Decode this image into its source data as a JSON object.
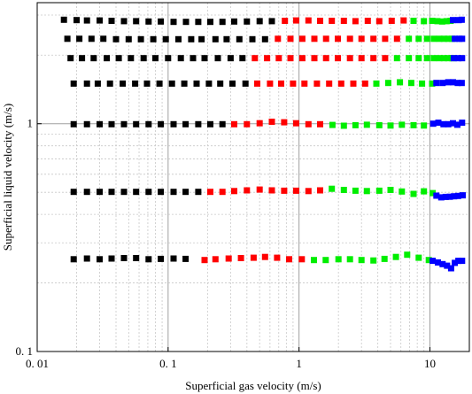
{
  "chart_data": {
    "type": "scatter",
    "xscale": "log",
    "yscale": "log",
    "xlim": [
      0.01,
      20
    ],
    "ylim": [
      0.1,
      3.4
    ],
    "xlabel": "Superficial gas velocity (m/s)",
    "ylabel": "Superficial liquid velocity (m/s)",
    "xticks": [
      {
        "value": 0.01,
        "label": "0. 01"
      },
      {
        "value": 0.1,
        "label": "0. 1"
      },
      {
        "value": 1,
        "label": "1"
      },
      {
        "value": 10,
        "label": "10"
      }
    ],
    "yticks": [
      {
        "value": 0.1,
        "label": "0. 1"
      },
      {
        "value": 1,
        "label": "1"
      }
    ],
    "grid": {
      "major": true,
      "minor": true
    },
    "colors": {
      "black": "#000000",
      "red": "#ff0000",
      "green": "#00ee00",
      "blue": "#0000ff"
    },
    "series": [
      {
        "color": "black",
        "points": [
          [
            0.016,
            2.86
          ],
          [
            0.02,
            2.85
          ],
          [
            0.024,
            2.84
          ],
          [
            0.03,
            2.84
          ],
          [
            0.037,
            2.83
          ],
          [
            0.046,
            2.82
          ],
          [
            0.057,
            2.82
          ],
          [
            0.071,
            2.81
          ],
          [
            0.088,
            2.81
          ],
          [
            0.11,
            2.8
          ],
          [
            0.137,
            2.8
          ],
          [
            0.17,
            2.8
          ],
          [
            0.21,
            2.8
          ],
          [
            0.26,
            2.8
          ],
          [
            0.32,
            2.81
          ],
          [
            0.4,
            2.81
          ],
          [
            0.5,
            2.82
          ],
          [
            0.62,
            2.82
          ],
          [
            0.017,
            2.36
          ],
          [
            0.021,
            2.36
          ],
          [
            0.026,
            2.36
          ],
          [
            0.032,
            2.36
          ],
          [
            0.04,
            2.35
          ],
          [
            0.05,
            2.35
          ],
          [
            0.062,
            2.35
          ],
          [
            0.077,
            2.35
          ],
          [
            0.096,
            2.35
          ],
          [
            0.12,
            2.35
          ],
          [
            0.15,
            2.35
          ],
          [
            0.18,
            2.35
          ],
          [
            0.23,
            2.35
          ],
          [
            0.28,
            2.35
          ],
          [
            0.35,
            2.35
          ],
          [
            0.44,
            2.35
          ],
          [
            0.55,
            2.35
          ],
          [
            0.018,
            1.94
          ],
          [
            0.022,
            1.94
          ],
          [
            0.027,
            1.94
          ],
          [
            0.034,
            1.94
          ],
          [
            0.042,
            1.94
          ],
          [
            0.052,
            1.94
          ],
          [
            0.065,
            1.94
          ],
          [
            0.08,
            1.94
          ],
          [
            0.1,
            1.94
          ],
          [
            0.125,
            1.94
          ],
          [
            0.155,
            1.94
          ],
          [
            0.19,
            1.94
          ],
          [
            0.24,
            1.94
          ],
          [
            0.3,
            1.94
          ],
          [
            0.37,
            1.94
          ],
          [
            0.019,
            1.5
          ],
          [
            0.024,
            1.5
          ],
          [
            0.029,
            1.5
          ],
          [
            0.036,
            1.5
          ],
          [
            0.045,
            1.5
          ],
          [
            0.056,
            1.5
          ],
          [
            0.069,
            1.5
          ],
          [
            0.086,
            1.5
          ],
          [
            0.107,
            1.5
          ],
          [
            0.133,
            1.5
          ],
          [
            0.165,
            1.5
          ],
          [
            0.205,
            1.5
          ],
          [
            0.25,
            1.5
          ],
          [
            0.31,
            1.5
          ],
          [
            0.39,
            1.5
          ],
          [
            0.019,
            0.995
          ],
          [
            0.024,
            0.995
          ],
          [
            0.03,
            0.995
          ],
          [
            0.037,
            0.995
          ],
          [
            0.046,
            0.995
          ],
          [
            0.057,
            0.995
          ],
          [
            0.071,
            0.995
          ],
          [
            0.088,
            0.995
          ],
          [
            0.11,
            0.995
          ],
          [
            0.136,
            0.995
          ],
          [
            0.17,
            0.995
          ],
          [
            0.21,
            0.995
          ],
          [
            0.26,
            0.995
          ],
          [
            0.019,
            0.502
          ],
          [
            0.024,
            0.502
          ],
          [
            0.03,
            0.502
          ],
          [
            0.037,
            0.502
          ],
          [
            0.046,
            0.502
          ],
          [
            0.057,
            0.502
          ],
          [
            0.071,
            0.502
          ],
          [
            0.088,
            0.502
          ],
          [
            0.11,
            0.502
          ],
          [
            0.136,
            0.502
          ],
          [
            0.17,
            0.502
          ],
          [
            0.019,
            0.254
          ],
          [
            0.024,
            0.256
          ],
          [
            0.03,
            0.254
          ],
          [
            0.037,
            0.256
          ],
          [
            0.046,
            0.257
          ],
          [
            0.057,
            0.257
          ],
          [
            0.071,
            0.254
          ],
          [
            0.088,
            0.255
          ],
          [
            0.11,
            0.256
          ],
          [
            0.136,
            0.255
          ]
        ]
      },
      {
        "color": "red",
        "points": [
          [
            0.78,
            2.83
          ],
          [
            0.95,
            2.84
          ],
          [
            1.18,
            2.84
          ],
          [
            1.45,
            2.83
          ],
          [
            1.78,
            2.83
          ],
          [
            2.2,
            2.83
          ],
          [
            2.7,
            2.82
          ],
          [
            3.35,
            2.83
          ],
          [
            4.1,
            2.82
          ],
          [
            5.1,
            2.83
          ],
          [
            6.3,
            2.84
          ],
          [
            0.69,
            2.36
          ],
          [
            0.86,
            2.36
          ],
          [
            1.06,
            2.36
          ],
          [
            1.31,
            2.36
          ],
          [
            1.61,
            2.36
          ],
          [
            1.98,
            2.36
          ],
          [
            2.45,
            2.36
          ],
          [
            3.0,
            2.36
          ],
          [
            3.7,
            2.36
          ],
          [
            4.55,
            2.36
          ],
          [
            5.6,
            2.36
          ],
          [
            0.46,
            1.94
          ],
          [
            0.57,
            1.94
          ],
          [
            0.7,
            1.94
          ],
          [
            0.86,
            1.94
          ],
          [
            1.06,
            1.94
          ],
          [
            1.31,
            1.94
          ],
          [
            1.61,
            1.94
          ],
          [
            1.98,
            1.94
          ],
          [
            2.45,
            1.94
          ],
          [
            3.0,
            1.94
          ],
          [
            3.7,
            1.94
          ],
          [
            4.55,
            1.94
          ],
          [
            0.48,
            1.5
          ],
          [
            0.6,
            1.5
          ],
          [
            0.73,
            1.5
          ],
          [
            0.9,
            1.5
          ],
          [
            1.1,
            1.5
          ],
          [
            1.37,
            1.5
          ],
          [
            1.7,
            1.5
          ],
          [
            2.1,
            1.5
          ],
          [
            2.6,
            1.5
          ],
          [
            3.2,
            1.5
          ],
          [
            0.32,
            0.995
          ],
          [
            0.4,
            0.995
          ],
          [
            0.5,
            1.005
          ],
          [
            0.62,
            1.02
          ],
          [
            0.77,
            1.015
          ],
          [
            0.95,
            1.005
          ],
          [
            1.18,
            0.995
          ],
          [
            1.45,
            0.995
          ],
          [
            0.21,
            0.502
          ],
          [
            0.26,
            0.502
          ],
          [
            0.32,
            0.506
          ],
          [
            0.4,
            0.51
          ],
          [
            0.5,
            0.514
          ],
          [
            0.62,
            0.51
          ],
          [
            0.77,
            0.508
          ],
          [
            0.95,
            0.508
          ],
          [
            1.18,
            0.506
          ],
          [
            1.45,
            0.51
          ],
          [
            0.19,
            0.252
          ],
          [
            0.23,
            0.254
          ],
          [
            0.29,
            0.256
          ],
          [
            0.36,
            0.257
          ],
          [
            0.45,
            0.258
          ],
          [
            0.55,
            0.26
          ],
          [
            0.68,
            0.258
          ],
          [
            0.84,
            0.254
          ],
          [
            1.05,
            0.254
          ]
        ]
      },
      {
        "color": "green",
        "points": [
          [
            7.5,
            2.83
          ],
          [
            9.0,
            2.82
          ],
          [
            10.4,
            2.83
          ],
          [
            11.4,
            2.82
          ],
          [
            12.4,
            2.81
          ],
          [
            13.4,
            2.82
          ],
          [
            14.4,
            2.83
          ],
          [
            6.9,
            2.36
          ],
          [
            8.2,
            2.36
          ],
          [
            9.5,
            2.36
          ],
          [
            10.7,
            2.36
          ],
          [
            11.8,
            2.36
          ],
          [
            12.8,
            2.36
          ],
          [
            13.8,
            2.36
          ],
          [
            14.8,
            2.36
          ],
          [
            5.6,
            1.94
          ],
          [
            6.9,
            1.94
          ],
          [
            8.2,
            1.94
          ],
          [
            9.5,
            1.94
          ],
          [
            10.7,
            1.94
          ],
          [
            11.8,
            1.94
          ],
          [
            12.8,
            1.94
          ],
          [
            13.8,
            1.94
          ],
          [
            14.8,
            1.94
          ],
          [
            3.9,
            1.5
          ],
          [
            4.8,
            1.51
          ],
          [
            5.9,
            1.52
          ],
          [
            7.2,
            1.51
          ],
          [
            8.7,
            1.5
          ],
          [
            10.4,
            1.5
          ],
          [
            1.8,
            0.988
          ],
          [
            2.2,
            0.98
          ],
          [
            2.7,
            0.985
          ],
          [
            3.3,
            0.99
          ],
          [
            4.1,
            0.985
          ],
          [
            5.0,
            0.982
          ],
          [
            6.1,
            0.99
          ],
          [
            7.5,
            0.985
          ],
          [
            9.0,
            0.982
          ],
          [
            1.78,
            0.518
          ],
          [
            2.2,
            0.512
          ],
          [
            2.7,
            0.508
          ],
          [
            3.3,
            0.506
          ],
          [
            4.1,
            0.508
          ],
          [
            5.0,
            0.512
          ],
          [
            6.1,
            0.504
          ],
          [
            7.5,
            0.492
          ],
          [
            9.0,
            0.505
          ],
          [
            10.5,
            0.496
          ],
          [
            1.3,
            0.252
          ],
          [
            1.6,
            0.252
          ],
          [
            2.0,
            0.254
          ],
          [
            2.45,
            0.254
          ],
          [
            3.0,
            0.252
          ],
          [
            3.7,
            0.251
          ],
          [
            4.5,
            0.255
          ],
          [
            5.5,
            0.26
          ],
          [
            6.7,
            0.266
          ],
          [
            8.2,
            0.258
          ],
          [
            9.8,
            0.252
          ]
        ]
      },
      {
        "color": "blue",
        "points": [
          [
            15.0,
            2.85
          ],
          [
            16.6,
            2.85
          ],
          [
            17.5,
            2.86
          ],
          [
            15.5,
            2.36
          ],
          [
            16.8,
            2.36
          ],
          [
            17.6,
            2.36
          ],
          [
            15.2,
            1.94
          ],
          [
            16.5,
            1.94
          ],
          [
            17.6,
            1.94
          ],
          [
            11.2,
            1.51
          ],
          [
            12.5,
            1.51
          ],
          [
            13.8,
            1.52
          ],
          [
            15.0,
            1.52
          ],
          [
            16.3,
            1.51
          ],
          [
            17.5,
            1.51
          ],
          [
            10.6,
            1.0
          ],
          [
            11.6,
            1.01
          ],
          [
            12.7,
            0.995
          ],
          [
            13.8,
            0.995
          ],
          [
            15.0,
            1.005
          ],
          [
            16.2,
            0.99
          ],
          [
            17.6,
            1.01
          ],
          [
            11.2,
            0.483
          ],
          [
            12.2,
            0.475
          ],
          [
            13.2,
            0.477
          ],
          [
            14.2,
            0.478
          ],
          [
            15.3,
            0.48
          ],
          [
            16.4,
            0.482
          ],
          [
            17.8,
            0.485
          ],
          [
            10.5,
            0.25
          ],
          [
            11.5,
            0.246
          ],
          [
            12.5,
            0.242
          ],
          [
            13.5,
            0.238
          ],
          [
            14.5,
            0.232
          ],
          [
            15.5,
            0.245
          ],
          [
            16.5,
            0.25
          ],
          [
            17.6,
            0.25
          ]
        ]
      }
    ]
  }
}
